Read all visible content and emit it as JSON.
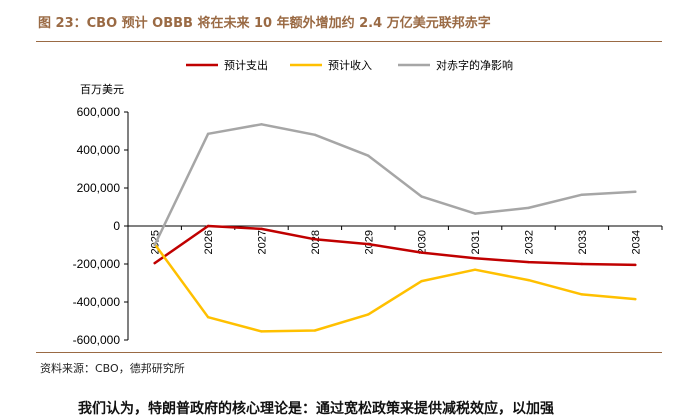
{
  "figure": {
    "title": "图 23：CBO 预计 OBBB 将在未来 10 年额外增加约 2.4 万亿美元联邦赤字",
    "source": "资料来源：CBO，德邦研究所",
    "cutoff_text": "我们认为，特朗普政府的核心理论是：通过宽松政策来提供减税效应，以加强"
  },
  "chart_data": {
    "type": "line",
    "ylabel": "百万美元",
    "categories": [
      "2025",
      "2026",
      "2027",
      "2028",
      "2029",
      "2030",
      "2031",
      "2032",
      "2033",
      "2034"
    ],
    "ylim": [
      -600000,
      600000
    ],
    "yticks": [
      600000,
      400000,
      200000,
      0,
      -200000,
      -400000,
      -600000
    ],
    "ytick_labels": [
      "600,000",
      "400,000",
      "200,000",
      "0",
      "-200,000",
      "-400,000",
      "-600,000"
    ],
    "grid": false,
    "legend_position": "top",
    "series": [
      {
        "name": "预计支出",
        "color": "#c00000",
        "values": [
          -195000,
          0,
          -15000,
          -70000,
          -95000,
          -140000,
          -170000,
          -190000,
          -200000,
          -205000
        ]
      },
      {
        "name": "预计收入",
        "color": "#ffc000",
        "values": [
          -95000,
          -480000,
          -555000,
          -550000,
          -465000,
          -290000,
          -230000,
          -285000,
          -360000,
          -385000
        ]
      },
      {
        "name": "对赤字的净影响",
        "color": "#a6a6a6",
        "values": [
          -100000,
          485000,
          535000,
          480000,
          370000,
          155000,
          65000,
          95000,
          165000,
          180000
        ]
      }
    ]
  }
}
